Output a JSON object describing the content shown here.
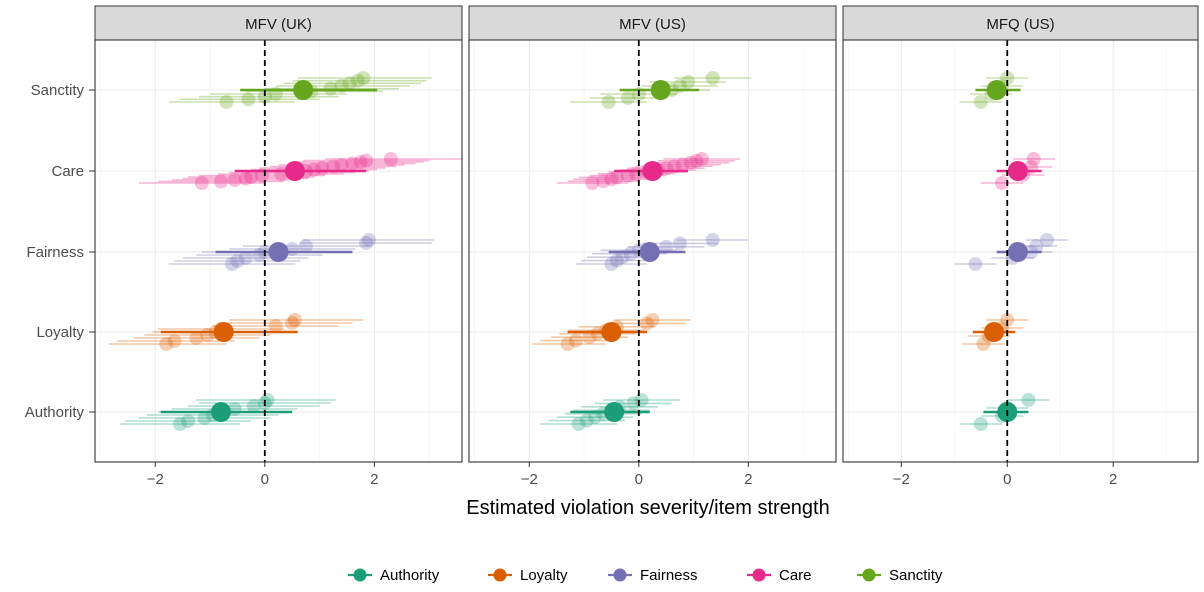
{
  "chart_data": {
    "type": "scatter",
    "xlabel": "Estimated violation severity/item strength",
    "xlim": [
      -3.1,
      3.6
    ],
    "x_ticks": [
      -2,
      0,
      2
    ],
    "x_tick_labels": [
      "−2",
      "0",
      "2"
    ],
    "reference_line_x": 0,
    "grid": true,
    "legend_position": "bottom",
    "categories": [
      "Sanctity",
      "Care",
      "Fairness",
      "Loyalty",
      "Authority"
    ],
    "series": [
      {
        "name": "Authority",
        "color": "#1B9E77"
      },
      {
        "name": "Loyalty",
        "color": "#D95F02"
      },
      {
        "name": "Fairness",
        "color": "#7570B3"
      },
      {
        "name": "Care",
        "color": "#E7298A"
      },
      {
        "name": "Sanctity",
        "color": "#66A61E"
      }
    ],
    "panels": [
      {
        "title": "MFV (UK)",
        "summary": [
          {
            "foundation": "Sanctity",
            "x": 0.7,
            "lo": -0.45,
            "hi": 2.05
          },
          {
            "foundation": "Care",
            "x": 0.55,
            "lo": -0.55,
            "hi": 1.85
          },
          {
            "foundation": "Fairness",
            "x": 0.25,
            "lo": -0.9,
            "hi": 1.6
          },
          {
            "foundation": "Loyalty",
            "x": -0.75,
            "lo": -1.9,
            "hi": 0.6
          },
          {
            "foundation": "Authority",
            "x": -0.8,
            "lo": -1.9,
            "hi": 0.5
          }
        ],
        "items": {
          "Sanctity": [
            [
              -0.7,
              -1.75,
              0.55
            ],
            [
              -0.3,
              -1.55,
              1.0
            ],
            [
              0.0,
              -1.2,
              1.35
            ],
            [
              0.2,
              -1.0,
              1.5
            ],
            [
              0.85,
              -0.35,
              2.15
            ],
            [
              1.2,
              0.0,
              2.45
            ],
            [
              1.4,
              0.2,
              2.65
            ],
            [
              1.55,
              0.35,
              2.85
            ],
            [
              1.7,
              0.5,
              2.95
            ],
            [
              1.8,
              0.6,
              3.05
            ]
          ],
          "Care": [
            [
              -1.15,
              -2.3,
              0.0
            ],
            [
              -0.8,
              -1.95,
              0.35
            ],
            [
              -0.55,
              -1.7,
              0.6
            ],
            [
              -0.35,
              -1.5,
              0.8
            ],
            [
              -0.25,
              -1.4,
              0.9
            ],
            [
              -0.05,
              -1.2,
              1.1
            ],
            [
              0.3,
              -0.85,
              1.45
            ],
            [
              0.5,
              -0.65,
              1.65
            ],
            [
              0.75,
              -0.4,
              1.9
            ],
            [
              0.9,
              -0.25,
              2.05
            ],
            [
              1.05,
              -0.1,
              2.2
            ],
            [
              1.25,
              0.1,
              2.4
            ],
            [
              1.4,
              0.25,
              2.55
            ],
            [
              1.6,
              0.45,
              2.75
            ],
            [
              1.75,
              0.6,
              2.9
            ],
            [
              1.85,
              0.7,
              3.0
            ],
            [
              2.3,
              1.1,
              3.6
            ]
          ],
          "Fairness": [
            [
              -0.6,
              -1.75,
              0.55
            ],
            [
              -0.5,
              -1.65,
              0.65
            ],
            [
              -0.35,
              -1.5,
              0.8
            ],
            [
              -0.1,
              -1.25,
              1.05
            ],
            [
              0.0,
              -1.15,
              1.15
            ],
            [
              0.5,
              -0.65,
              1.65
            ],
            [
              0.75,
              -0.4,
              1.9
            ],
            [
              1.85,
              0.65,
              3.05
            ],
            [
              1.9,
              0.7,
              3.1
            ]
          ],
          "Loyalty": [
            [
              -1.8,
              -2.85,
              -0.7
            ],
            [
              -1.65,
              -2.7,
              -0.55
            ],
            [
              -1.25,
              -2.4,
              -0.1
            ],
            [
              -1.05,
              -2.2,
              0.1
            ],
            [
              -0.9,
              -2.05,
              0.25
            ],
            [
              -0.8,
              -1.95,
              0.35
            ],
            [
              0.2,
              -0.95,
              1.35
            ],
            [
              0.5,
              -0.7,
              1.6
            ],
            [
              0.55,
              -0.65,
              1.8
            ]
          ],
          "Authority": [
            [
              -1.55,
              -2.65,
              -0.45
            ],
            [
              -1.4,
              -2.55,
              -0.25
            ],
            [
              -1.1,
              -2.3,
              0.1
            ],
            [
              -0.95,
              -2.15,
              0.25
            ],
            [
              -0.75,
              -1.95,
              0.45
            ],
            [
              -0.55,
              -1.7,
              0.6
            ],
            [
              -0.2,
              -1.4,
              1.0
            ],
            [
              0.0,
              -1.2,
              1.2
            ],
            [
              0.05,
              -1.25,
              1.3
            ]
          ]
        }
      },
      {
        "title": "MFV (US)",
        "summary": [
          {
            "foundation": "Sanctity",
            "x": 0.4,
            "lo": -0.35,
            "hi": 1.1
          },
          {
            "foundation": "Care",
            "x": 0.25,
            "lo": -0.45,
            "hi": 0.9
          },
          {
            "foundation": "Fairness",
            "x": 0.2,
            "lo": -0.55,
            "hi": 0.85
          },
          {
            "foundation": "Loyalty",
            "x": -0.5,
            "lo": -1.3,
            "hi": 0.15
          },
          {
            "foundation": "Authority",
            "x": -0.45,
            "lo": -1.25,
            "hi": 0.2
          }
        ],
        "items": {
          "Sanctity": [
            [
              -0.55,
              -1.25,
              0.15
            ],
            [
              -0.2,
              -0.9,
              0.5
            ],
            [
              0.0,
              -0.7,
              0.7
            ],
            [
              0.6,
              -0.1,
              1.3
            ],
            [
              0.75,
              0.05,
              1.45
            ],
            [
              0.9,
              0.2,
              1.6
            ],
            [
              1.35,
              0.65,
              2.05
            ]
          ],
          "Care": [
            [
              -0.85,
              -1.5,
              -0.2
            ],
            [
              -0.65,
              -1.3,
              0.0
            ],
            [
              -0.5,
              -1.2,
              0.2
            ],
            [
              -0.4,
              -1.1,
              0.3
            ],
            [
              -0.2,
              -0.9,
              0.5
            ],
            [
              -0.05,
              -0.75,
              0.65
            ],
            [
              0.15,
              -0.55,
              0.85
            ],
            [
              0.35,
              -0.35,
              1.05
            ],
            [
              0.5,
              -0.2,
              1.2
            ],
            [
              0.65,
              -0.05,
              1.35
            ],
            [
              0.8,
              0.1,
              1.5
            ],
            [
              0.95,
              0.25,
              1.65
            ],
            [
              1.05,
              0.35,
              1.75
            ],
            [
              1.15,
              0.45,
              1.85
            ]
          ],
          "Fairness": [
            [
              -0.5,
              -1.15,
              0.15
            ],
            [
              -0.4,
              -1.05,
              0.25
            ],
            [
              -0.3,
              -0.95,
              0.35
            ],
            [
              -0.15,
              -0.85,
              0.5
            ],
            [
              0.0,
              -0.7,
              0.7
            ],
            [
              0.5,
              -0.2,
              1.2
            ],
            [
              0.75,
              0.05,
              1.45
            ],
            [
              1.35,
              0.7,
              2.0
            ]
          ],
          "Loyalty": [
            [
              -1.3,
              -1.95,
              -0.6
            ],
            [
              -1.15,
              -1.8,
              -0.45
            ],
            [
              -0.9,
              -1.6,
              -0.2
            ],
            [
              -0.75,
              -1.45,
              -0.05
            ],
            [
              -0.6,
              -1.3,
              0.1
            ],
            [
              -0.4,
              -1.1,
              0.3
            ],
            [
              0.15,
              -0.55,
              0.85
            ],
            [
              0.25,
              -0.45,
              0.95
            ]
          ],
          "Authority": [
            [
              -1.1,
              -1.8,
              -0.4
            ],
            [
              -0.95,
              -1.65,
              -0.25
            ],
            [
              -0.8,
              -1.5,
              -0.1
            ],
            [
              -0.65,
              -1.35,
              0.05
            ],
            [
              -0.5,
              -1.2,
              0.2
            ],
            [
              -0.35,
              -1.05,
              0.35
            ],
            [
              -0.1,
              -0.8,
              0.6
            ],
            [
              0.05,
              -0.65,
              0.75
            ]
          ]
        }
      },
      {
        "title": "MFQ (US)",
        "summary": [
          {
            "foundation": "Sanctity",
            "x": -0.2,
            "lo": -0.6,
            "hi": 0.25
          },
          {
            "foundation": "Care",
            "x": 0.2,
            "lo": -0.2,
            "hi": 0.65
          },
          {
            "foundation": "Fairness",
            "x": 0.2,
            "lo": -0.2,
            "hi": 0.65
          },
          {
            "foundation": "Loyalty",
            "x": -0.25,
            "lo": -0.65,
            "hi": 0.15
          },
          {
            "foundation": "Authority",
            "x": 0.0,
            "lo": -0.45,
            "hi": 0.4
          }
        ],
        "items": {
          "Sanctity": [
            [
              -0.5,
              -0.9,
              -0.1
            ],
            [
              -0.3,
              -0.7,
              0.1
            ],
            [
              -0.1,
              -0.5,
              0.3
            ],
            [
              0.0,
              -0.4,
              0.4
            ]
          ],
          "Care": [
            [
              -0.1,
              -0.5,
              0.3
            ],
            [
              0.3,
              -0.1,
              0.7
            ],
            [
              0.45,
              0.05,
              0.85
            ],
            [
              0.5,
              0.1,
              0.9
            ]
          ],
          "Fairness": [
            [
              -0.6,
              -1.0,
              -0.2
            ],
            [
              0.1,
              -0.3,
              0.5
            ],
            [
              0.45,
              0.05,
              0.85
            ],
            [
              0.55,
              0.15,
              0.95
            ],
            [
              0.75,
              0.35,
              1.15
            ]
          ],
          "Loyalty": [
            [
              -0.45,
              -0.85,
              -0.05
            ],
            [
              -0.35,
              -0.75,
              0.05
            ],
            [
              -0.1,
              -0.5,
              0.3
            ],
            [
              0.0,
              -0.4,
              0.4
            ]
          ],
          "Authority": [
            [
              -0.5,
              -0.9,
              -0.1
            ],
            [
              -0.1,
              -0.5,
              0.3
            ],
            [
              0.0,
              -0.4,
              0.4
            ],
            [
              0.4,
              0.0,
              0.8
            ]
          ]
        }
      }
    ]
  }
}
